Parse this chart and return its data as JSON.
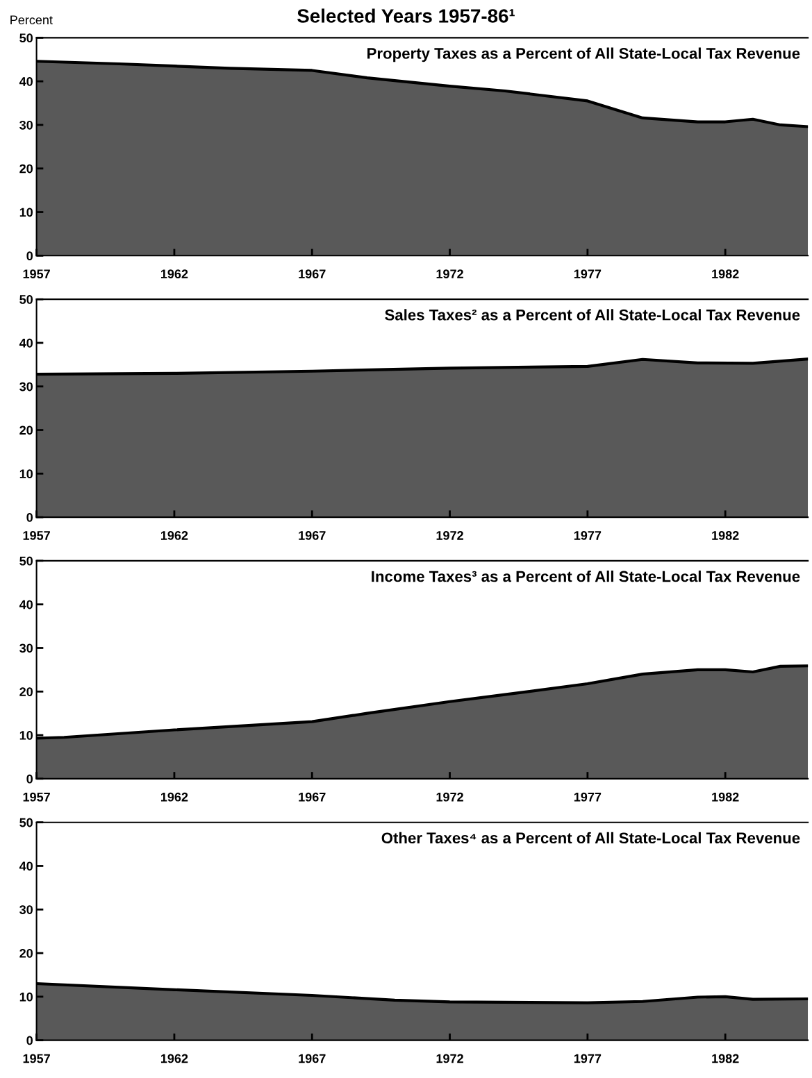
{
  "chart_data": [
    {
      "type": "area",
      "title": "Property Taxes as a Percent of All State-Local Tax Revenue",
      "ylabel": "Percent",
      "annotations": [
        "Selected Years 1957-86¹"
      ],
      "xlim": [
        1957,
        1985
      ],
      "xticks": [
        1957,
        1962,
        1967,
        1972,
        1977,
        1982
      ],
      "ylim": [
        0,
        50
      ],
      "yticks": [
        0,
        10,
        20,
        30,
        40,
        50
      ],
      "grid": false,
      "series": [
        {
          "color": "#595959",
          "x": [
            1957,
            1960,
            1962,
            1964,
            1967,
            1969,
            1972,
            1974,
            1977,
            1979,
            1981,
            1982,
            1983,
            1984,
            1985
          ],
          "values": [
            44.6,
            44,
            43.5,
            43,
            42.5,
            40.8,
            38.9,
            37.8,
            35.5,
            31.6,
            30.7,
            30.7,
            31.3,
            30,
            29.6
          ]
        }
      ]
    },
    {
      "type": "area",
      "title": "Sales Taxes² as a Percent of All State-Local Tax Revenue",
      "xlim": [
        1957,
        1985
      ],
      "xticks": [
        1957,
        1962,
        1967,
        1972,
        1977,
        1982
      ],
      "ylim": [
        0,
        50
      ],
      "yticks": [
        0,
        10,
        20,
        30,
        40,
        50
      ],
      "grid": false,
      "series": [
        {
          "color": "#595959",
          "x": [
            1957,
            1962,
            1967,
            1972,
            1977,
            1979,
            1981,
            1983,
            1985
          ],
          "values": [
            32.8,
            33.0,
            33.5,
            34.2,
            34.6,
            36.2,
            35.4,
            35.3,
            36.3
          ]
        }
      ]
    },
    {
      "type": "area",
      "title": "Income Taxes³ as a Percent of All State-Local Tax Revenue",
      "xlim": [
        1957,
        1985
      ],
      "xticks": [
        1957,
        1962,
        1967,
        1972,
        1977,
        1982
      ],
      "ylim": [
        0,
        50
      ],
      "yticks": [
        0,
        10,
        20,
        30,
        40,
        50
      ],
      "grid": false,
      "series": [
        {
          "color": "#595959",
          "x": [
            1957,
            1958,
            1962,
            1967,
            1969,
            1972,
            1974,
            1977,
            1979,
            1981,
            1982,
            1983,
            1984,
            1985
          ],
          "values": [
            9.3,
            9.5,
            11.2,
            13.1,
            15,
            17.7,
            19.3,
            21.8,
            24,
            25,
            25,
            24.5,
            25.8,
            25.9
          ]
        }
      ]
    },
    {
      "type": "area",
      "title": "Other Taxes⁴ as a Percent of All State-Local Tax Revenue",
      "xlim": [
        1957,
        1985
      ],
      "xticks": [
        1957,
        1962,
        1967,
        1972,
        1977,
        1982
      ],
      "ylim": [
        0,
        50
      ],
      "yticks": [
        0,
        10,
        20,
        30,
        40,
        50
      ],
      "grid": false,
      "series": [
        {
          "color": "#595959",
          "x": [
            1957,
            1962,
            1967,
            1970,
            1972,
            1977,
            1979,
            1981,
            1982,
            1983,
            1985
          ],
          "values": [
            13,
            11.6,
            10.3,
            9.2,
            8.8,
            8.6,
            8.9,
            9.9,
            10,
            9.4,
            9.5
          ]
        }
      ]
    }
  ]
}
